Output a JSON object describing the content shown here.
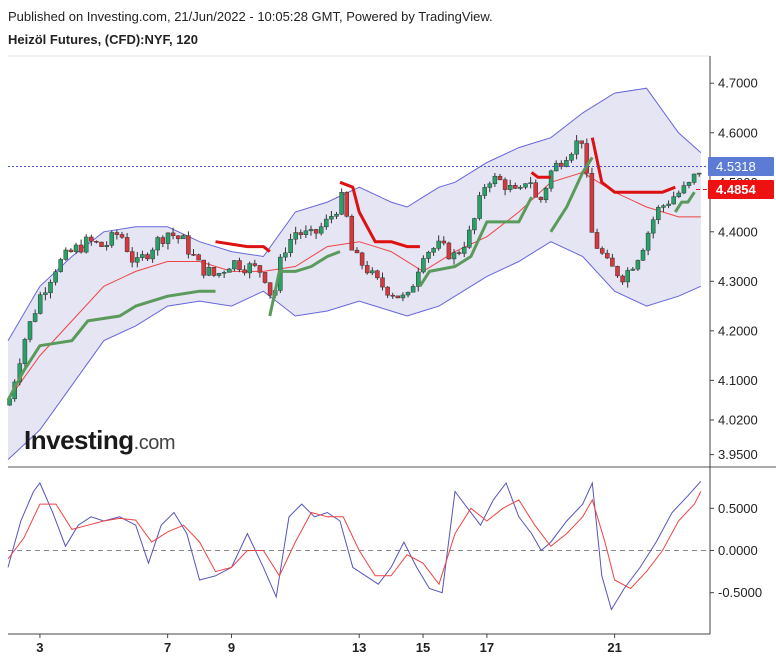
{
  "header": {
    "published": "Published on Investing.com, 21/Jun/2022 - 10:05:28 GMT, Powered by TradingView.",
    "symbol": "Heizöl Futures, (CFD):NYF, 120"
  },
  "watermark": {
    "brand": "Investing",
    "suffix": ".com"
  },
  "colors": {
    "up": "#26a269",
    "down": "#d9363e",
    "band_fill": "#dcdcf0",
    "band_line": "#6666dd",
    "ma": "#ee4444",
    "trail_up": "#5a9a5a",
    "trail_down": "#dd1111",
    "osc_k": "#5555bb",
    "osc_d": "#ee4444",
    "current_label": "#5b7bd5",
    "stop_label": "#ee1111"
  },
  "chart_data": [
    {
      "type": "candlestick",
      "title": "",
      "x_tick_labels": [
        "3",
        "7",
        "9",
        "13",
        "15",
        "17",
        "21"
      ],
      "x_tick_positions": [
        3,
        7,
        9,
        13,
        15,
        17,
        21
      ],
      "x_range": [
        2.0,
        23.8
      ],
      "y_axis_labels": [
        "4.7000",
        "4.6000",
        "4.5000",
        "4.4000",
        "4.3000",
        "4.2000",
        "4.1000",
        "4.0200",
        "3.9500"
      ],
      "current_price": 4.5318,
      "current_price_label": "4.5318",
      "stop_price": 4.4854,
      "stop_price_label": "4.4854",
      "close_path": [
        [
          2.0,
          4.05
        ],
        [
          2.5,
          4.18
        ],
        [
          3.0,
          4.27
        ],
        [
          3.5,
          4.33
        ],
        [
          4.0,
          4.36
        ],
        [
          4.5,
          4.38
        ],
        [
          5.0,
          4.37
        ],
        [
          5.5,
          4.4
        ],
        [
          6.0,
          4.33
        ],
        [
          6.5,
          4.37
        ],
        [
          7.0,
          4.4
        ],
        [
          7.5,
          4.38
        ],
        [
          8.0,
          4.33
        ],
        [
          8.5,
          4.31
        ],
        [
          9.0,
          4.34
        ],
        [
          9.5,
          4.33
        ],
        [
          10.0,
          4.32
        ],
        [
          10.3,
          4.26
        ],
        [
          10.6,
          4.36
        ],
        [
          11.0,
          4.4
        ],
        [
          11.5,
          4.39
        ],
        [
          12.0,
          4.42
        ],
        [
          12.5,
          4.47
        ],
        [
          12.8,
          4.35
        ],
        [
          13.2,
          4.33
        ],
        [
          13.5,
          4.3
        ],
        [
          14.0,
          4.28
        ],
        [
          14.5,
          4.26
        ],
        [
          15.0,
          4.36
        ],
        [
          15.5,
          4.37
        ],
        [
          16.0,
          4.35
        ],
        [
          16.5,
          4.4
        ],
        [
          17.0,
          4.51
        ],
        [
          17.5,
          4.5
        ],
        [
          18.0,
          4.47
        ],
        [
          18.3,
          4.52
        ],
        [
          18.6,
          4.45
        ],
        [
          19.0,
          4.52
        ],
        [
          19.5,
          4.56
        ],
        [
          20.0,
          4.59
        ],
        [
          20.3,
          4.39
        ],
        [
          20.8,
          4.33
        ],
        [
          21.3,
          4.31
        ],
        [
          21.8,
          4.36
        ],
        [
          22.3,
          4.44
        ],
        [
          22.8,
          4.47
        ],
        [
          23.3,
          4.49
        ],
        [
          23.7,
          4.53
        ]
      ],
      "bollinger_upper_path": [
        [
          2.0,
          4.18
        ],
        [
          3.0,
          4.29
        ],
        [
          4.0,
          4.35
        ],
        [
          5.0,
          4.4
        ],
        [
          6.0,
          4.41
        ],
        [
          7.0,
          4.41
        ],
        [
          8.0,
          4.38
        ],
        [
          9.0,
          4.36
        ],
        [
          10.0,
          4.35
        ],
        [
          11.0,
          4.44
        ],
        [
          12.0,
          4.46
        ],
        [
          13.0,
          4.49
        ],
        [
          14.0,
          4.46
        ],
        [
          14.5,
          4.45
        ],
        [
          15.0,
          4.47
        ],
        [
          15.5,
          4.49
        ],
        [
          16.0,
          4.5
        ],
        [
          17.0,
          4.54
        ],
        [
          18.0,
          4.57
        ],
        [
          19.0,
          4.59
        ],
        [
          20.0,
          4.64
        ],
        [
          21.0,
          4.68
        ],
        [
          22.0,
          4.69
        ],
        [
          23.0,
          4.6
        ],
        [
          23.7,
          4.56
        ]
      ],
      "bollinger_lower_path": [
        [
          2.0,
          3.94
        ],
        [
          3.0,
          4.0
        ],
        [
          4.0,
          4.09
        ],
        [
          5.0,
          4.18
        ],
        [
          6.0,
          4.21
        ],
        [
          7.0,
          4.25
        ],
        [
          8.0,
          4.26
        ],
        [
          9.0,
          4.25
        ],
        [
          10.0,
          4.28
        ],
        [
          11.0,
          4.23
        ],
        [
          12.0,
          4.24
        ],
        [
          13.0,
          4.26
        ],
        [
          14.0,
          4.24
        ],
        [
          14.5,
          4.23
        ],
        [
          15.0,
          4.24
        ],
        [
          15.5,
          4.25
        ],
        [
          16.0,
          4.27
        ],
        [
          17.0,
          4.31
        ],
        [
          18.0,
          4.34
        ],
        [
          19.0,
          4.38
        ],
        [
          20.0,
          4.35
        ],
        [
          21.0,
          4.28
        ],
        [
          22.0,
          4.25
        ],
        [
          23.0,
          4.27
        ],
        [
          23.7,
          4.29
        ]
      ],
      "moving_average_path": [
        [
          2.0,
          4.06
        ],
        [
          3.0,
          4.15
        ],
        [
          4.0,
          4.22
        ],
        [
          5.0,
          4.29
        ],
        [
          6.0,
          4.32
        ],
        [
          7.0,
          4.34
        ],
        [
          8.0,
          4.34
        ],
        [
          9.0,
          4.32
        ],
        [
          10.0,
          4.32
        ],
        [
          11.0,
          4.33
        ],
        [
          12.0,
          4.37
        ],
        [
          13.0,
          4.38
        ],
        [
          14.0,
          4.36
        ],
        [
          15.0,
          4.32
        ],
        [
          16.0,
          4.36
        ],
        [
          17.0,
          4.39
        ],
        [
          18.0,
          4.44
        ],
        [
          19.0,
          4.5
        ],
        [
          20.0,
          4.52
        ],
        [
          21.0,
          4.48
        ],
        [
          22.0,
          4.45
        ],
        [
          23.0,
          4.43
        ],
        [
          23.7,
          4.43
        ]
      ],
      "trailing_stop_up_segments": [
        [
          [
            2.0,
            4.06
          ],
          [
            2.5,
            4.12
          ],
          [
            3.0,
            4.17
          ],
          [
            4.0,
            4.18
          ],
          [
            4.5,
            4.22
          ],
          [
            5.5,
            4.23
          ],
          [
            6.0,
            4.25
          ],
          [
            7.0,
            4.27
          ],
          [
            8.0,
            4.28
          ],
          [
            8.5,
            4.28
          ]
        ],
        [
          [
            10.2,
            4.23
          ],
          [
            10.5,
            4.32
          ],
          [
            11.0,
            4.32
          ],
          [
            11.5,
            4.33
          ],
          [
            12.0,
            4.35
          ],
          [
            12.4,
            4.36
          ]
        ],
        [
          [
            14.9,
            4.29
          ],
          [
            15.2,
            4.32
          ],
          [
            16.0,
            4.33
          ],
          [
            16.5,
            4.35
          ],
          [
            17.0,
            4.42
          ],
          [
            17.5,
            4.42
          ],
          [
            18.0,
            4.42
          ],
          [
            18.4,
            4.47
          ]
        ],
        [
          [
            19.0,
            4.4
          ],
          [
            19.5,
            4.45
          ],
          [
            20.0,
            4.52
          ],
          [
            20.3,
            4.55
          ]
        ],
        [
          [
            22.9,
            4.44
          ],
          [
            23.1,
            4.46
          ],
          [
            23.3,
            4.46
          ],
          [
            23.5,
            4.48
          ]
        ]
      ],
      "trailing_stop_down_segments": [
        [
          [
            8.5,
            4.38
          ],
          [
            9.5,
            4.37
          ],
          [
            10.0,
            4.37
          ],
          [
            10.2,
            4.36
          ]
        ],
        [
          [
            12.4,
            4.5
          ],
          [
            12.8,
            4.49
          ],
          [
            13.0,
            4.44
          ],
          [
            13.5,
            4.38
          ],
          [
            14.0,
            4.38
          ],
          [
            14.5,
            4.37
          ],
          [
            14.9,
            4.37
          ]
        ],
        [
          [
            18.4,
            4.52
          ],
          [
            18.6,
            4.51
          ],
          [
            19.0,
            4.51
          ]
        ],
        [
          [
            20.3,
            4.59
          ],
          [
            20.6,
            4.5
          ],
          [
            21.0,
            4.48
          ],
          [
            21.5,
            4.48
          ],
          [
            22.5,
            4.48
          ],
          [
            22.9,
            4.49
          ]
        ]
      ]
    },
    {
      "type": "line",
      "title": "",
      "y_axis_labels": [
        "0.5000",
        "0.0000",
        "-0.5000"
      ],
      "y_ticks": [
        0.5,
        0.0,
        -0.5
      ],
      "zero_line": true,
      "series": [
        {
          "key": "k",
          "points": [
            [
              2.0,
              -0.2
            ],
            [
              2.4,
              0.35
            ],
            [
              2.8,
              0.7
            ],
            [
              3.0,
              0.8
            ],
            [
              3.4,
              0.45
            ],
            [
              3.8,
              0.05
            ],
            [
              4.2,
              0.3
            ],
            [
              4.6,
              0.4
            ],
            [
              5.0,
              0.35
            ],
            [
              5.5,
              0.4
            ],
            [
              6.0,
              0.3
            ],
            [
              6.4,
              -0.15
            ],
            [
              6.8,
              0.3
            ],
            [
              7.2,
              0.45
            ],
            [
              7.6,
              0.2
            ],
            [
              8.0,
              -0.35
            ],
            [
              8.5,
              -0.3
            ],
            [
              9.0,
              -0.2
            ],
            [
              9.5,
              0.2
            ],
            [
              10.0,
              -0.2
            ],
            [
              10.4,
              -0.55
            ],
            [
              10.8,
              0.4
            ],
            [
              11.2,
              0.55
            ],
            [
              11.6,
              0.4
            ],
            [
              12.0,
              0.45
            ],
            [
              12.4,
              0.35
            ],
            [
              12.8,
              -0.2
            ],
            [
              13.2,
              -0.3
            ],
            [
              13.6,
              -0.4
            ],
            [
              14.0,
              -0.2
            ],
            [
              14.4,
              0.1
            ],
            [
              14.8,
              -0.2
            ],
            [
              15.2,
              -0.45
            ],
            [
              15.6,
              -0.5
            ],
            [
              16.0,
              0.7
            ],
            [
              16.4,
              0.5
            ],
            [
              16.8,
              0.3
            ],
            [
              17.2,
              0.6
            ],
            [
              17.6,
              0.8
            ],
            [
              18.0,
              0.4
            ],
            [
              18.4,
              0.2
            ],
            [
              18.7,
              0.0
            ],
            [
              19.0,
              0.1
            ],
            [
              19.5,
              0.35
            ],
            [
              20.0,
              0.55
            ],
            [
              20.3,
              0.8
            ],
            [
              20.6,
              -0.3
            ],
            [
              20.9,
              -0.7
            ],
            [
              21.3,
              -0.45
            ],
            [
              21.8,
              -0.2
            ],
            [
              22.3,
              0.1
            ],
            [
              22.8,
              0.45
            ],
            [
              23.3,
              0.65
            ],
            [
              23.7,
              0.82
            ]
          ]
        },
        {
          "key": "d",
          "points": [
            [
              2.0,
              -0.1
            ],
            [
              2.5,
              0.15
            ],
            [
              3.0,
              0.55
            ],
            [
              3.5,
              0.55
            ],
            [
              4.0,
              0.25
            ],
            [
              4.5,
              0.3
            ],
            [
              5.0,
              0.35
            ],
            [
              5.5,
              0.38
            ],
            [
              6.0,
              0.36
            ],
            [
              6.5,
              0.1
            ],
            [
              7.0,
              0.22
            ],
            [
              7.5,
              0.3
            ],
            [
              8.0,
              0.1
            ],
            [
              8.5,
              -0.25
            ],
            [
              9.0,
              -0.2
            ],
            [
              9.5,
              0.0
            ],
            [
              10.0,
              0.0
            ],
            [
              10.5,
              -0.3
            ],
            [
              11.0,
              0.1
            ],
            [
              11.5,
              0.45
            ],
            [
              12.0,
              0.4
            ],
            [
              12.5,
              0.4
            ],
            [
              13.0,
              0.0
            ],
            [
              13.5,
              -0.3
            ],
            [
              14.0,
              -0.3
            ],
            [
              14.5,
              -0.05
            ],
            [
              15.0,
              -0.15
            ],
            [
              15.5,
              -0.4
            ],
            [
              16.0,
              0.2
            ],
            [
              16.5,
              0.5
            ],
            [
              17.0,
              0.35
            ],
            [
              17.5,
              0.5
            ],
            [
              18.0,
              0.6
            ],
            [
              18.5,
              0.3
            ],
            [
              19.0,
              0.05
            ],
            [
              19.5,
              0.2
            ],
            [
              20.0,
              0.4
            ],
            [
              20.3,
              0.6
            ],
            [
              20.7,
              0.1
            ],
            [
              21.0,
              -0.35
            ],
            [
              21.5,
              -0.45
            ],
            [
              22.0,
              -0.25
            ],
            [
              22.5,
              0.0
            ],
            [
              23.0,
              0.35
            ],
            [
              23.5,
              0.55
            ],
            [
              23.7,
              0.7
            ]
          ]
        }
      ]
    }
  ]
}
